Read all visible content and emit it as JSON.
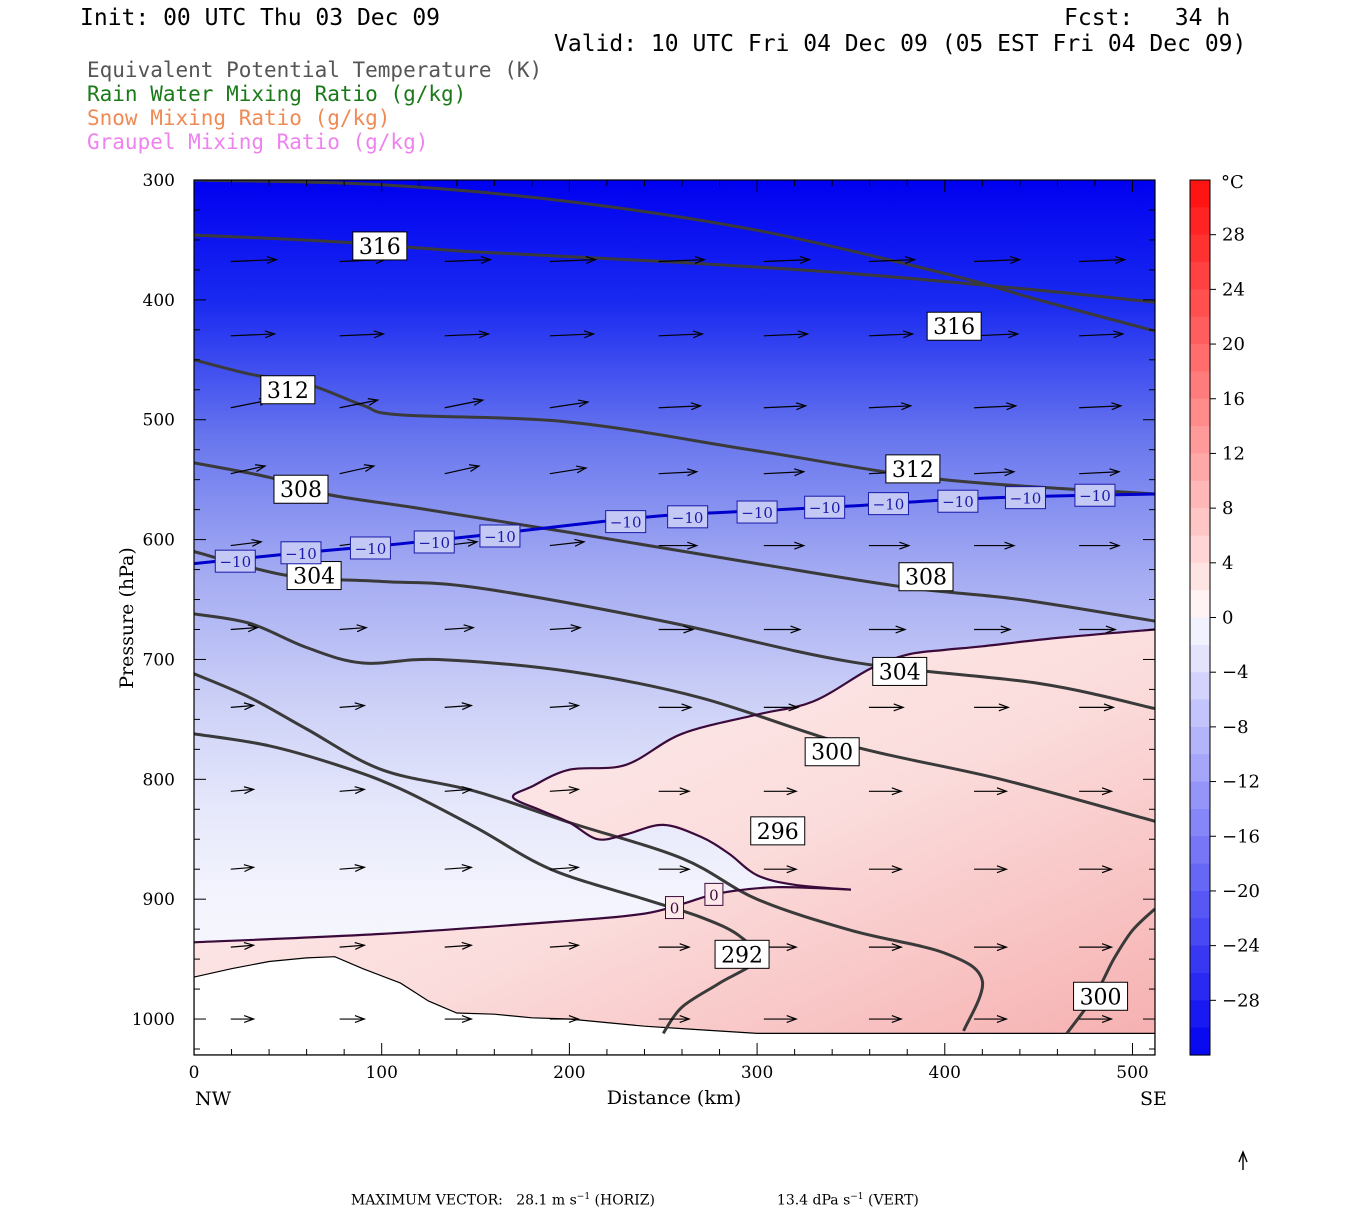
{
  "header": {
    "init": "Init: 00 UTC Thu 03 Dec 09",
    "fcst": "Fcst:   34 h",
    "valid": "Valid: 10 UTC Fri 04 Dec 09 (05 EST Fri 04 Dec 09)"
  },
  "legend": [
    {
      "label": "Equivalent Potential Temperature (K)",
      "color": "#555555"
    },
    {
      "label": "Rain Water Mixing Ratio (g/kg)",
      "color": "#1a7a1a"
    },
    {
      "label": "Snow Mixing Ratio (g/kg)",
      "color": "#f08a55"
    },
    {
      "label": "Graupel Mixing Ratio (g/kg)",
      "color": "#ee82ee"
    }
  ],
  "chart_data": {
    "type": "cross-section",
    "xlabel": "Distance (km)",
    "ylabel": "Pressure (hPa)",
    "xlim": [
      0,
      512
    ],
    "ylim": [
      1030,
      300
    ],
    "x_ticks": [
      "0",
      "100",
      "200",
      "300",
      "400",
      "500"
    ],
    "y_ticks": [
      "300",
      "400",
      "500",
      "600",
      "700",
      "800",
      "900",
      "1000"
    ],
    "x_end_labels": {
      "left": "NW",
      "right": "SE"
    },
    "colorbar": {
      "unit": "°C",
      "ticks": [
        "28",
        "24",
        "20",
        "16",
        "12",
        "8",
        "4",
        "0",
        "−4",
        "−8",
        "−12",
        "−16",
        "−20",
        "−24",
        "−28"
      ]
    },
    "theta_e_contours": [
      {
        "level": 316,
        "points": [
          [
            0,
            346
          ],
          [
            30,
            348
          ],
          [
            80,
            352
          ],
          [
            150,
            360
          ],
          [
            250,
            368
          ],
          [
            350,
            378
          ],
          [
            450,
            392
          ],
          [
            512,
            402
          ]
        ]
      },
      {
        "level": 316,
        "points": [
          [
            0,
            300
          ],
          [
            100,
            304
          ],
          [
            200,
            318
          ],
          [
            300,
            342
          ],
          [
            400,
            378
          ],
          [
            450,
            400
          ],
          [
            512,
            426
          ]
        ]
      },
      {
        "level": 312,
        "points": [
          [
            0,
            450
          ],
          [
            30,
            462
          ],
          [
            60,
            470
          ],
          [
            90,
            488
          ],
          [
            110,
            496
          ],
          [
            200,
            502
          ],
          [
            300,
            526
          ],
          [
            400,
            550
          ],
          [
            512,
            562
          ]
        ]
      },
      {
        "level": 308,
        "points": [
          [
            0,
            536
          ],
          [
            40,
            548
          ],
          [
            70,
            562
          ],
          [
            120,
            574
          ],
          [
            200,
            594
          ],
          [
            300,
            620
          ],
          [
            380,
            640
          ],
          [
            440,
            650
          ],
          [
            512,
            668
          ]
        ]
      },
      {
        "level": 304,
        "points": [
          [
            0,
            610
          ],
          [
            50,
            630
          ],
          [
            100,
            635
          ],
          [
            150,
            640
          ],
          [
            250,
            668
          ],
          [
            350,
            702
          ],
          [
            450,
            720
          ],
          [
            512,
            741
          ]
        ]
      },
      {
        "level": 300,
        "points": [
          [
            0,
            662
          ],
          [
            30,
            670
          ],
          [
            60,
            690
          ],
          [
            90,
            703
          ],
          [
            130,
            700
          ],
          [
            200,
            710
          ],
          [
            270,
            732
          ],
          [
            350,
            772
          ],
          [
            430,
            800
          ],
          [
            512,
            835
          ]
        ]
      },
      {
        "level": 296,
        "points": [
          [
            0,
            712
          ],
          [
            30,
            732
          ],
          [
            60,
            758
          ],
          [
            100,
            792
          ],
          [
            150,
            810
          ],
          [
            200,
            836
          ],
          [
            260,
            866
          ],
          [
            300,
            900
          ],
          [
            350,
            926
          ],
          [
            400,
            945
          ],
          [
            420,
            968
          ],
          [
            410,
            1010
          ]
        ]
      },
      {
        "level": 292,
        "points": [
          [
            0,
            762
          ],
          [
            40,
            772
          ],
          [
            80,
            790
          ],
          [
            110,
            808
          ],
          [
            150,
            840
          ],
          [
            190,
            875
          ],
          [
            240,
            900
          ],
          [
            270,
            915
          ],
          [
            290,
            930
          ],
          [
            300,
            950
          ],
          [
            280,
            970
          ],
          [
            260,
            990
          ],
          [
            250,
            1012
          ]
        ]
      },
      {
        "level": 300,
        "points": [
          [
            512,
            908
          ],
          [
            500,
            926
          ],
          [
            490,
            950
          ],
          [
            480,
            980
          ],
          [
            465,
            1012
          ]
        ]
      }
    ],
    "temperature_contours": [
      {
        "level": -10,
        "points": [
          [
            0,
            620
          ],
          [
            50,
            612
          ],
          [
            100,
            605
          ],
          [
            150,
            597
          ],
          [
            200,
            588
          ],
          [
            250,
            580
          ],
          [
            300,
            576
          ],
          [
            350,
            572
          ],
          [
            400,
            567
          ],
          [
            450,
            564
          ],
          [
            512,
            562
          ]
        ]
      },
      {
        "level": 0,
        "points": [
          [
            0,
            936
          ],
          [
            100,
            929
          ],
          [
            200,
            918
          ],
          [
            240,
            912
          ],
          [
            260,
            904
          ],
          [
            280,
            895
          ],
          [
            310,
            890
          ],
          [
            350,
            892
          ]
        ]
      },
      {
        "level": 0,
        "points": [
          [
            512,
            675
          ],
          [
            460,
            682
          ],
          [
            420,
            689
          ],
          [
            400,
            692
          ],
          [
            380,
            696
          ],
          [
            360,
            708
          ],
          [
            330,
            735
          ],
          [
            300,
            746
          ],
          [
            260,
            762
          ],
          [
            230,
            788
          ],
          [
            200,
            792
          ],
          [
            180,
            806
          ],
          [
            170,
            815
          ],
          [
            185,
            826
          ],
          [
            200,
            836
          ],
          [
            215,
            850
          ],
          [
            230,
            846
          ],
          [
            250,
            838
          ],
          [
            270,
            848
          ],
          [
            285,
            862
          ],
          [
            300,
            880
          ],
          [
            320,
            888
          ],
          [
            350,
            892
          ]
        ]
      }
    ],
    "temperature_labels": [
      {
        "value": "−10",
        "x": 22,
        "y": 618
      },
      {
        "value": "−10",
        "x": 57,
        "y": 611
      },
      {
        "value": "−10",
        "x": 94,
        "y": 607
      },
      {
        "value": "−10",
        "x": 128,
        "y": 602
      },
      {
        "value": "−10",
        "x": 163,
        "y": 597
      },
      {
        "value": "−10",
        "x": 230,
        "y": 585
      },
      {
        "value": "−10",
        "x": 263,
        "y": 581
      },
      {
        "value": "−10",
        "x": 300,
        "y": 577
      },
      {
        "value": "−10",
        "x": 336,
        "y": 573
      },
      {
        "value": "−10",
        "x": 370,
        "y": 570
      },
      {
        "value": "−10",
        "x": 407,
        "y": 568
      },
      {
        "value": "−10",
        "x": 443,
        "y": 565
      },
      {
        "value": "−10",
        "x": 480,
        "y": 563
      },
      {
        "value": "0",
        "x": 256,
        "y": 907
      },
      {
        "value": "0",
        "x": 277,
        "y": 896
      }
    ],
    "theta_e_labels": [
      {
        "value": "316",
        "x": 99,
        "y": 355
      },
      {
        "value": "316",
        "x": 405,
        "y": 422
      },
      {
        "value": "312",
        "x": 50,
        "y": 475
      },
      {
        "value": "312",
        "x": 383,
        "y": 541
      },
      {
        "value": "308",
        "x": 57,
        "y": 558
      },
      {
        "value": "308",
        "x": 390,
        "y": 631
      },
      {
        "value": "304",
        "x": 64,
        "y": 630
      },
      {
        "value": "304",
        "x": 376,
        "y": 710
      },
      {
        "value": "300",
        "x": 340,
        "y": 777
      },
      {
        "value": "296",
        "x": 311,
        "y": 843
      },
      {
        "value": "292",
        "x": 292,
        "y": 946
      },
      {
        "value": "300",
        "x": 483,
        "y": 981
      }
    ],
    "wind_grid": {
      "x": [
        10,
        68,
        124,
        180,
        238,
        294,
        350,
        406,
        462
      ],
      "rows": [
        {
          "p": 368,
          "vecs": [
            [
              24,
              -1
            ],
            [
              24,
              -1
            ],
            [
              24,
              -1
            ],
            [
              24,
              -1
            ],
            [
              24,
              -1
            ],
            [
              24,
              -1
            ],
            [
              24,
              -1
            ],
            [
              24,
              -1
            ],
            [
              24,
              -1
            ]
          ]
        },
        {
          "p": 430,
          "vecs": [
            [
              23,
              -1
            ],
            [
              23,
              -1
            ],
            [
              23,
              -1
            ],
            [
              23,
              -1
            ],
            [
              23,
              -1
            ],
            [
              23,
              -1
            ],
            [
              23,
              -1
            ],
            [
              23,
              -1
            ],
            [
              23,
              -1
            ]
          ]
        },
        {
          "p": 490,
          "vecs": [
            [
              20,
              -4
            ],
            [
              20,
              -4
            ],
            [
              20,
              -4
            ],
            [
              20,
              -3
            ],
            [
              22,
              -1
            ],
            [
              22,
              -1
            ],
            [
              22,
              -1
            ],
            [
              22,
              -1
            ],
            [
              22,
              -1
            ]
          ]
        },
        {
          "p": 545,
          "vecs": [
            [
              18,
              -4
            ],
            [
              18,
              -4
            ],
            [
              18,
              -4
            ],
            [
              19,
              -3
            ],
            [
              20,
              -1
            ],
            [
              21,
              -1
            ],
            [
              21,
              -1
            ],
            [
              21,
              -1
            ],
            [
              21,
              -1
            ]
          ]
        },
        {
          "p": 605,
          "vecs": [
            [
              16,
              -2
            ],
            [
              16,
              -2
            ],
            [
              17,
              -2
            ],
            [
              18,
              -2
            ],
            [
              20,
              0
            ],
            [
              21,
              0
            ],
            [
              21,
              0
            ],
            [
              21,
              0
            ],
            [
              21,
              0
            ]
          ]
        },
        {
          "p": 675,
          "vecs": [
            [
              14,
              -1
            ],
            [
              14,
              -1
            ],
            [
              15,
              -1
            ],
            [
              16,
              -1
            ],
            [
              18,
              0
            ],
            [
              19,
              0
            ],
            [
              19,
              0
            ],
            [
              19,
              0
            ],
            [
              19,
              0
            ]
          ]
        },
        {
          "p": 740,
          "vecs": [
            [
              12,
              -1
            ],
            [
              13,
              -1
            ],
            [
              14,
              -1
            ],
            [
              15,
              -1
            ],
            [
              17,
              0
            ],
            [
              18,
              0
            ],
            [
              18,
              0
            ],
            [
              18,
              0
            ],
            [
              18,
              0
            ]
          ]
        },
        {
          "p": 810,
          "vecs": [
            [
              12,
              -1
            ],
            [
              13,
              -1
            ],
            [
              14,
              -1
            ],
            [
              15,
              -1
            ],
            [
              16,
              0
            ],
            [
              17,
              0
            ],
            [
              17,
              0
            ],
            [
              17,
              0
            ],
            [
              17,
              0
            ]
          ]
        },
        {
          "p": 875,
          "vecs": [
            [
              12,
              -1
            ],
            [
              13,
              -1
            ],
            [
              14,
              -1
            ],
            [
              15,
              -1
            ],
            [
              16,
              0
            ],
            [
              17,
              0
            ],
            [
              17,
              0
            ],
            [
              17,
              0
            ],
            [
              17,
              0
            ]
          ]
        },
        {
          "p": 940,
          "vecs": [
            [
              12,
              -1
            ],
            [
              13,
              -1
            ],
            [
              14,
              -1
            ],
            [
              15,
              -1
            ],
            [
              16,
              0
            ],
            [
              17,
              0
            ],
            [
              17,
              0
            ],
            [
              17,
              0
            ],
            [
              17,
              0
            ]
          ]
        },
        {
          "p": 1000,
          "vecs": [
            [
              12,
              0
            ],
            [
              13,
              0
            ],
            [
              14,
              0
            ],
            [
              15,
              0
            ],
            [
              16,
              0
            ],
            [
              17,
              0
            ],
            [
              17,
              0
            ],
            [
              17,
              0
            ],
            [
              17,
              0
            ]
          ]
        }
      ]
    },
    "terrain": [
      [
        0,
        965
      ],
      [
        20,
        958
      ],
      [
        40,
        952
      ],
      [
        60,
        949
      ],
      [
        75,
        948
      ],
      [
        90,
        958
      ],
      [
        110,
        970
      ],
      [
        125,
        985
      ],
      [
        140,
        995
      ],
      [
        160,
        996
      ],
      [
        180,
        999
      ],
      [
        200,
        1000
      ],
      [
        220,
        1003
      ],
      [
        240,
        1006
      ],
      [
        260,
        1008
      ],
      [
        280,
        1010
      ],
      [
        300,
        1012
      ],
      [
        320,
        1012
      ],
      [
        360,
        1012
      ],
      [
        400,
        1012
      ],
      [
        450,
        1012
      ],
      [
        512,
        1012
      ]
    ]
  },
  "footer": {
    "max_vector": "MAXIMUM VECTOR:",
    "horiz_value": "28.1 m s",
    "horiz_exp": "−1",
    "horiz_unit": "(HORIZ)",
    "vert_value": "13.4 dPa s",
    "vert_exp": "−1",
    "vert_unit": "(VERT)"
  }
}
